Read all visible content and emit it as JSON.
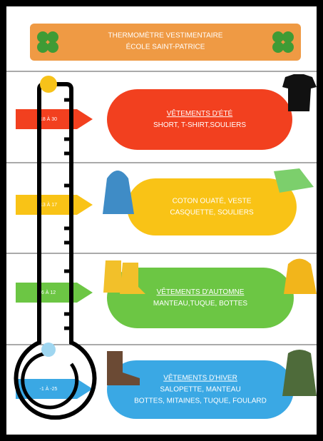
{
  "header": {
    "title": "THERMOMÈTRE VESTIMENTAIRE",
    "subtitle": "ÉCOLE SAINT-PATRICE"
  },
  "bands": [
    {
      "range": "18 À 30",
      "title": "VÊTEMENTS D'ÉTÉ",
      "lines": [
        "SHORT, T-SHIRT,SOULIERS"
      ]
    },
    {
      "range": "13 À 17",
      "lines": [
        "COTON OUATÉ, VESTE",
        "CASQUETTE, SOULIERS"
      ]
    },
    {
      "range": "6 À 12",
      "title": "VÊTEMENTS D'AUTOMNE",
      "lines": [
        "MANTEAU,TUQUE, BOTTES"
      ]
    },
    {
      "range": "-1 À -25",
      "title": "VÊTEMENTS D'HIVER",
      "lines": [
        "SALOPETTE, MANTEAU",
        "BOTTES, MITAINES, TUQUE, FOULARD"
      ]
    }
  ]
}
